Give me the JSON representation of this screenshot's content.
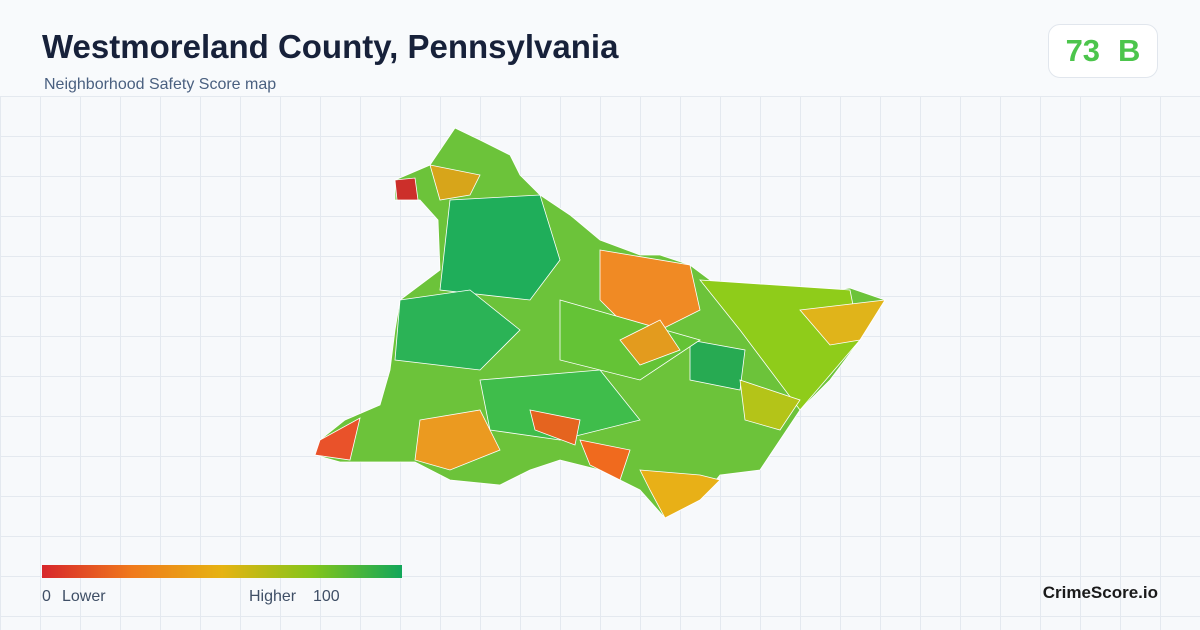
{
  "header": {
    "title": "Westmoreland County, Pennsylvania",
    "subtitle": "Neighborhood Safety Score map"
  },
  "score": {
    "value": 73,
    "grade": "B"
  },
  "legend": {
    "min": 0,
    "min_label": "Lower",
    "max_label": "Higher",
    "max": 100
  },
  "brand": "CrimeScore.io"
}
